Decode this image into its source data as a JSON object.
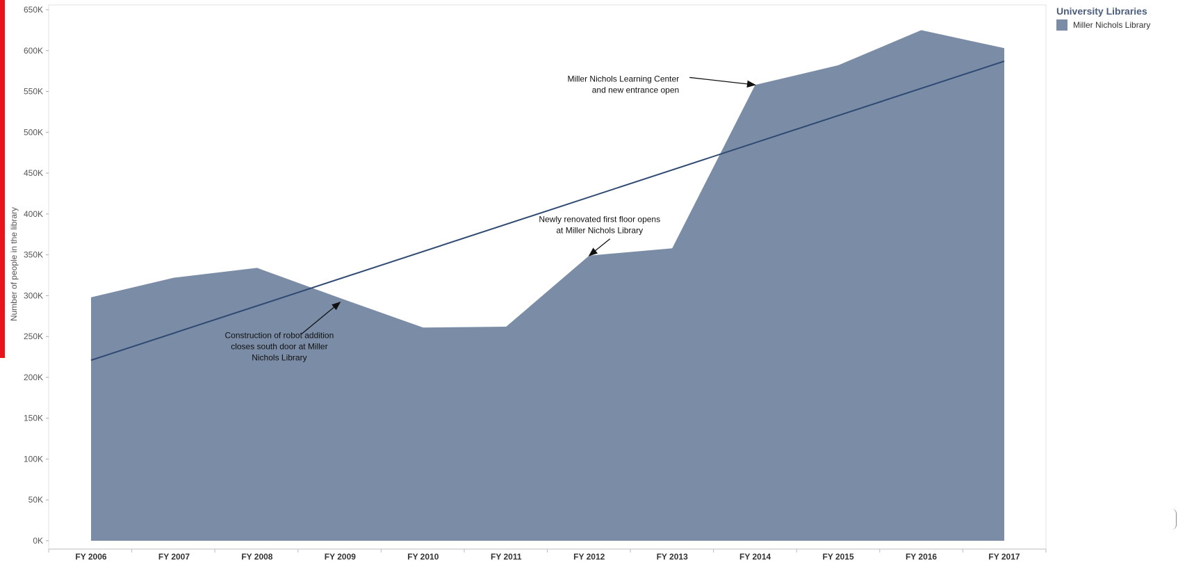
{
  "chart_data": {
    "type": "area",
    "x": [
      "FY 2006",
      "FY 2007",
      "FY 2008",
      "FY 2009",
      "FY 2010",
      "FY 2011",
      "FY 2012",
      "FY 2013",
      "FY 2014",
      "FY 2015",
      "FY 2016",
      "FY 2017"
    ],
    "series": [
      {
        "name": "Miller Nichols Library",
        "values": [
          298000,
          322000,
          334000,
          297000,
          261000,
          262000,
          349000,
          358000,
          558000,
          582000,
          625000,
          603000
        ],
        "color": "#7a8ca6"
      }
    ],
    "trend_line": {
      "start": 221000,
      "end": 587000,
      "color": "#2f4a72"
    },
    "ylabel": "Number of people in the library",
    "ylim": [
      0,
      650000
    ],
    "yticks": [
      "0K",
      "50K",
      "100K",
      "150K",
      "200K",
      "250K",
      "300K",
      "350K",
      "400K",
      "450K",
      "500K",
      "550K",
      "600K",
      "650K"
    ],
    "legend": {
      "title": "University Libraries",
      "entries": [
        "Miller Nichols Library"
      ],
      "placement": "right"
    },
    "annotations": [
      {
        "lines": [
          "Construction of robot addition",
          "closes south door at Miller",
          "Nichols Library"
        ],
        "x": "FY 2009",
        "y": 292000,
        "text_x": "FY 2008",
        "text_y": 248000
      },
      {
        "lines": [
          "Newly renovated first floor opens",
          "at Miller Nichols Library"
        ],
        "x": "FY 2012",
        "y": 349000,
        "text_x": "FY 2012",
        "text_y": 390000
      },
      {
        "lines": [
          "Miller Nichols Learning Center",
          "and new entrance open"
        ],
        "x": "FY 2014",
        "y": 558000,
        "text_x": "FY 2013",
        "text_y": 562000
      }
    ],
    "grid": false
  }
}
